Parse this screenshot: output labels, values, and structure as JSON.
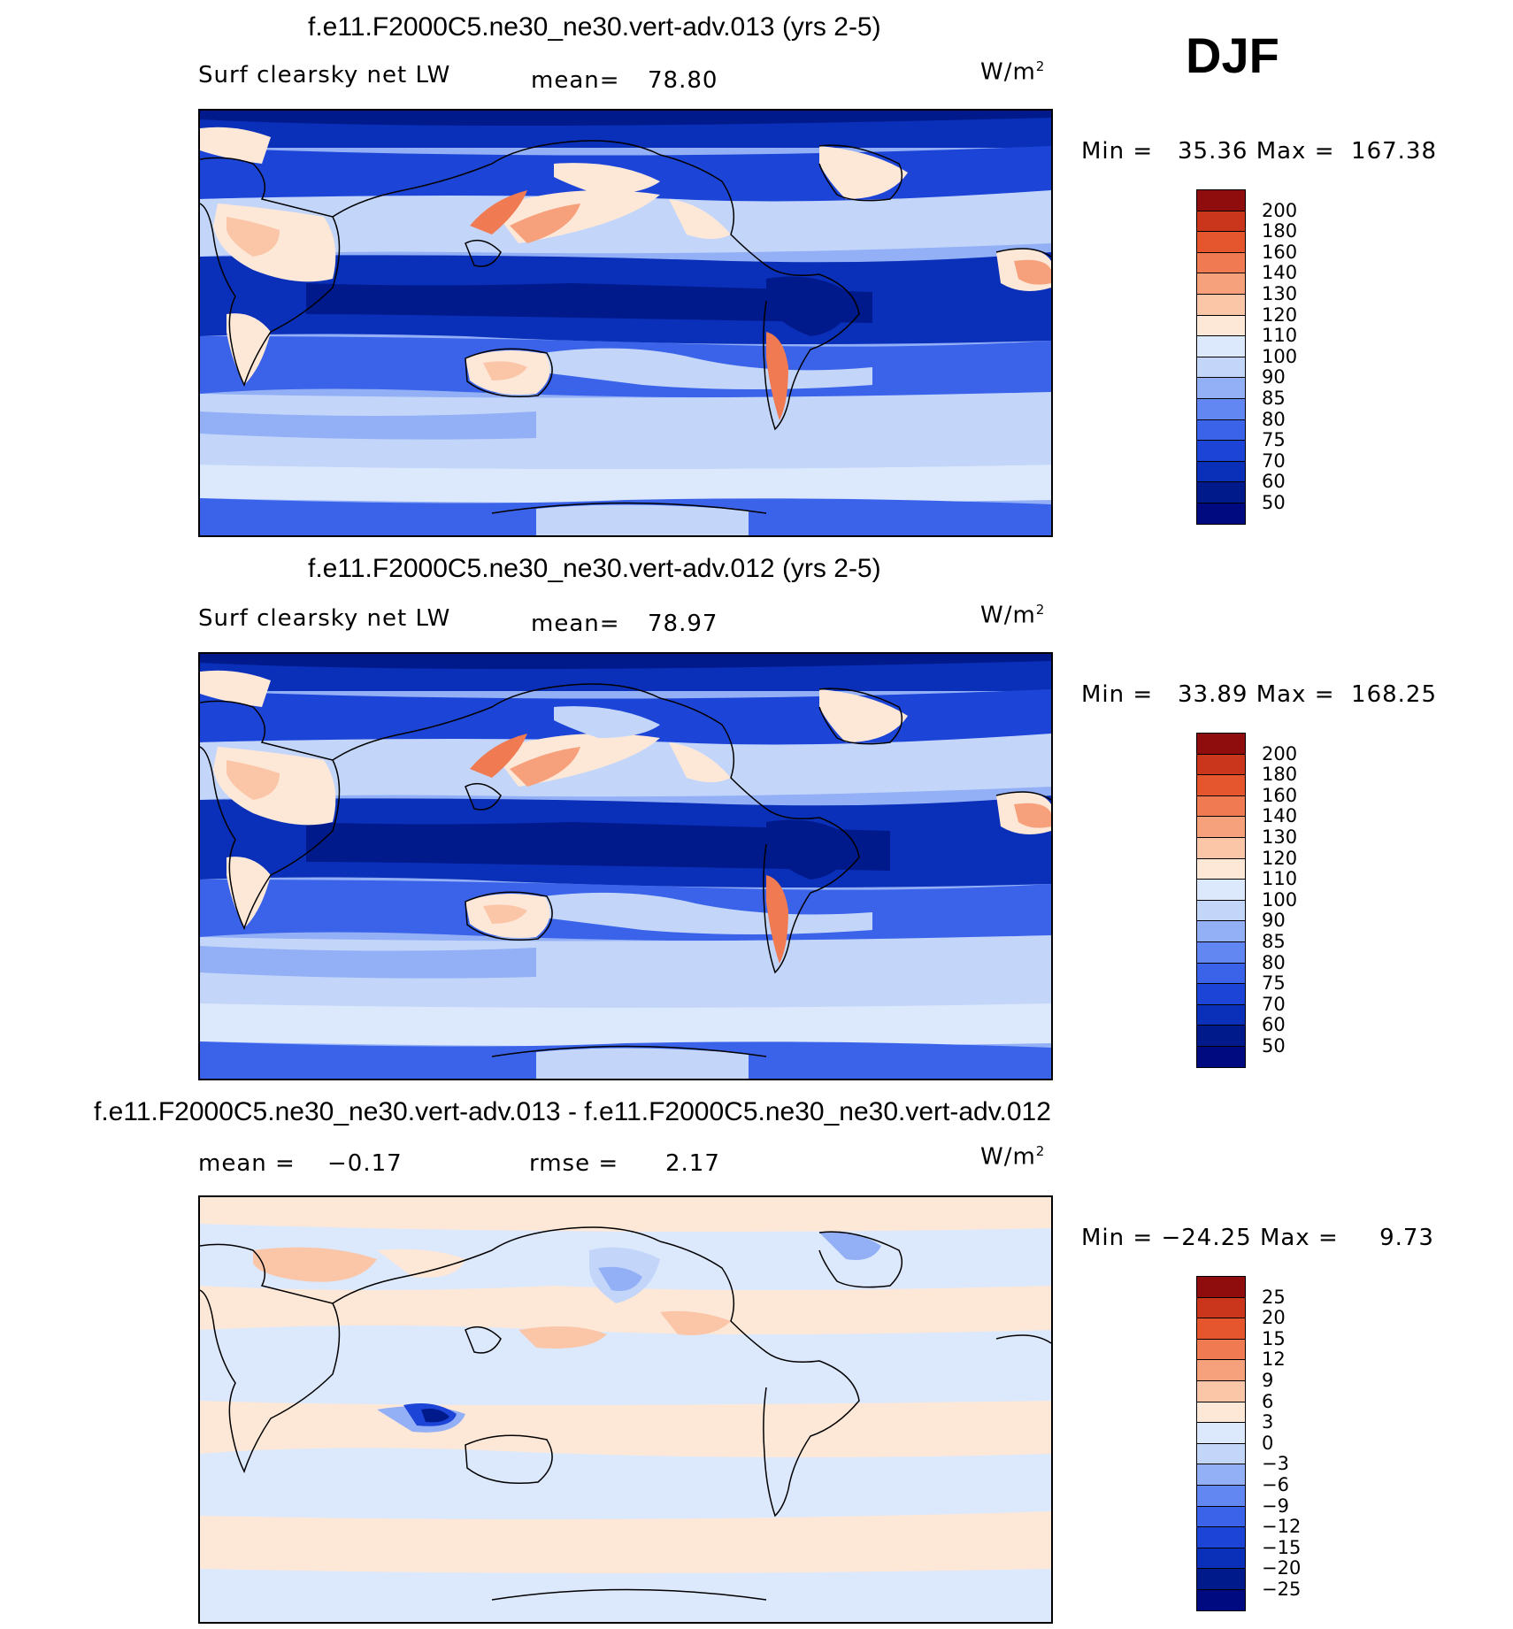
{
  "season": "DJF",
  "colors": {
    "p50": "#001a8c",
    "p60": "#0a2fb8",
    "p70": "#1c45d8",
    "p75": "#3a63ea",
    "p80": "#6287f2",
    "p85": "#93b0f7",
    "p90": "#c3d6fa",
    "p100": "#dce8fc",
    "p110": "#fde8d8",
    "p120": "#fbc6a8",
    "p130": "#f7a07c",
    "p140": "#f07a52",
    "p160": "#e5562e",
    "p180": "#c9361b",
    "p200": "#8f0d0d"
  },
  "panels": [
    {
      "title": "f.e11.F2000C5.ne30_ne30.vert-adv.013 (yrs 2-5)",
      "variable": "Surf clearsky net LW",
      "stat_label": "mean=",
      "stat_value": "78.80",
      "units": "W/m",
      "units_sup": "2",
      "min_label": "Min =",
      "min_value": "35.36",
      "max_label": "Max =",
      "max_value": "167.38",
      "levels": [
        "200",
        "180",
        "160",
        "140",
        "130",
        "120",
        "110",
        "100",
        "90",
        "85",
        "80",
        "75",
        "70",
        "60",
        "50"
      ]
    },
    {
      "title": "f.e11.F2000C5.ne30_ne30.vert-adv.012 (yrs 2-5)",
      "variable": "Surf clearsky net LW",
      "stat_label": "mean=",
      "stat_value": "78.97",
      "units": "W/m",
      "units_sup": "2",
      "min_label": "Min =",
      "min_value": "33.89",
      "max_label": "Max =",
      "max_value": "168.25",
      "levels": [
        "200",
        "180",
        "160",
        "140",
        "130",
        "120",
        "110",
        "100",
        "90",
        "85",
        "80",
        "75",
        "70",
        "60",
        "50"
      ]
    },
    {
      "title": "f.e11.F2000C5.ne30_ne30.vert-adv.013 - f.e11.F2000C5.ne30_ne30.vert-adv.012",
      "stat_label": "mean =",
      "stat_value": "−0.17",
      "rmse_label": "rmse =",
      "rmse_value": "2.17",
      "units": "W/m",
      "units_sup": "2",
      "min_label": "Min =",
      "min_value": "−24.25",
      "max_label": "Max =",
      "max_value": "9.73",
      "levels": [
        "25",
        "20",
        "15",
        "12",
        "9",
        "6",
        "3",
        "0",
        "−3",
        "−6",
        "−9",
        "−12",
        "−15",
        "−20",
        "−25"
      ]
    }
  ]
}
